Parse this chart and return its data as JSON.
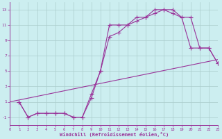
{
  "xlabel": "Windchill (Refroidissement éolien,°C)",
  "bg_color": "#cceef0",
  "line_color": "#993399",
  "grid_color": "#aacccc",
  "xlim": [
    0,
    23
  ],
  "ylim": [
    -2,
    14
  ],
  "xticks": [
    0,
    1,
    2,
    3,
    4,
    5,
    6,
    7,
    8,
    9,
    10,
    11,
    12,
    13,
    14,
    15,
    16,
    17,
    18,
    19,
    20,
    21,
    22,
    23
  ],
  "yticks": [
    -1,
    1,
    3,
    5,
    7,
    9,
    11,
    13
  ],
  "line1_x": [
    1,
    2,
    3,
    4,
    5,
    6,
    7,
    8,
    9,
    10,
    11,
    12,
    13,
    14,
    15,
    16,
    17,
    18,
    19,
    20,
    21,
    22,
    23
  ],
  "line1_y": [
    1,
    -1,
    -0.5,
    -0.5,
    -0.5,
    -0.5,
    -1,
    -1,
    2,
    5,
    11,
    11,
    11,
    12,
    12,
    13,
    13,
    13,
    12,
    8,
    8,
    8,
    6
  ],
  "line2_x": [
    1,
    2,
    3,
    4,
    5,
    6,
    7,
    8,
    9,
    10,
    11,
    12,
    13,
    14,
    15,
    16,
    17,
    18,
    19,
    20,
    21,
    22,
    23
  ],
  "line2_y": [
    1,
    -1,
    -0.5,
    -0.5,
    -0.5,
    -0.5,
    -1,
    -1,
    1.5,
    5,
    9.5,
    10,
    11,
    11.5,
    12,
    12.5,
    13,
    12.5,
    12,
    12,
    8,
    8,
    6
  ],
  "line3_x": [
    0,
    23
  ],
  "line3_y": [
    1,
    6.5
  ]
}
